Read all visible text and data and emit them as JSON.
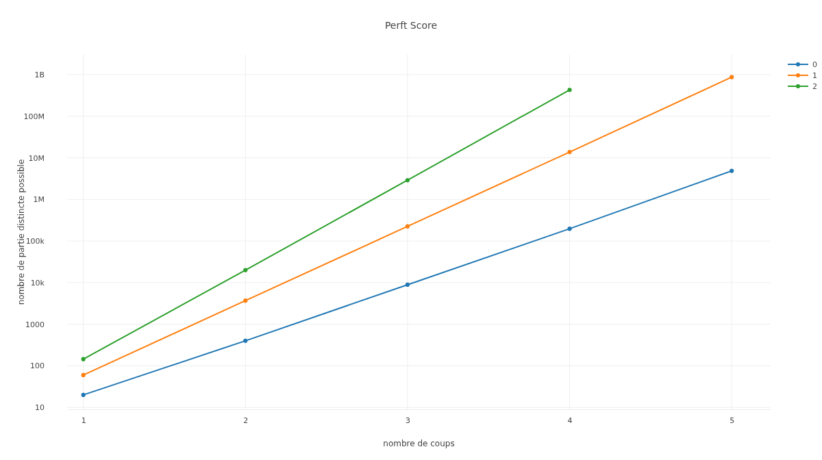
{
  "chart_data": {
    "type": "line",
    "title": "Perft Score",
    "xlabel": "nombre de coups",
    "ylabel": "nombre de partie distincte possible",
    "x": [
      1,
      2,
      3,
      4,
      5
    ],
    "log": "y",
    "grid": true,
    "legend": "top right",
    "marker": "circle",
    "line_style": "solid",
    "xlim": [
      0.9,
      5.24
    ],
    "xticks": [
      1,
      2,
      3,
      4,
      5
    ],
    "ylim": [
      9,
      3000000000
    ],
    "yticks": [
      10,
      100,
      1000,
      {
        "value": 10000,
        "label": "10k"
      },
      {
        "value": 100000,
        "label": "100k"
      },
      {
        "value": 1000000,
        "label": "1M"
      },
      {
        "value": 10000000,
        "label": "10M"
      },
      {
        "value": 100000000,
        "label": "100M"
      },
      {
        "value": 1000000000,
        "label": "1B"
      }
    ],
    "series": [
      {
        "name": "0",
        "color": "#1f77b4",
        "values": [
          20,
          400,
          8902,
          197281,
          4865609
        ]
      },
      {
        "name": "1",
        "color": "#ff7f0e",
        "values": [
          60,
          3700,
          225000,
          13800000,
          870000000
        ]
      },
      {
        "name": "2",
        "color": "#2ca02c",
        "values": [
          145,
          20000,
          2900000,
          430000000,
          null
        ]
      }
    ]
  }
}
